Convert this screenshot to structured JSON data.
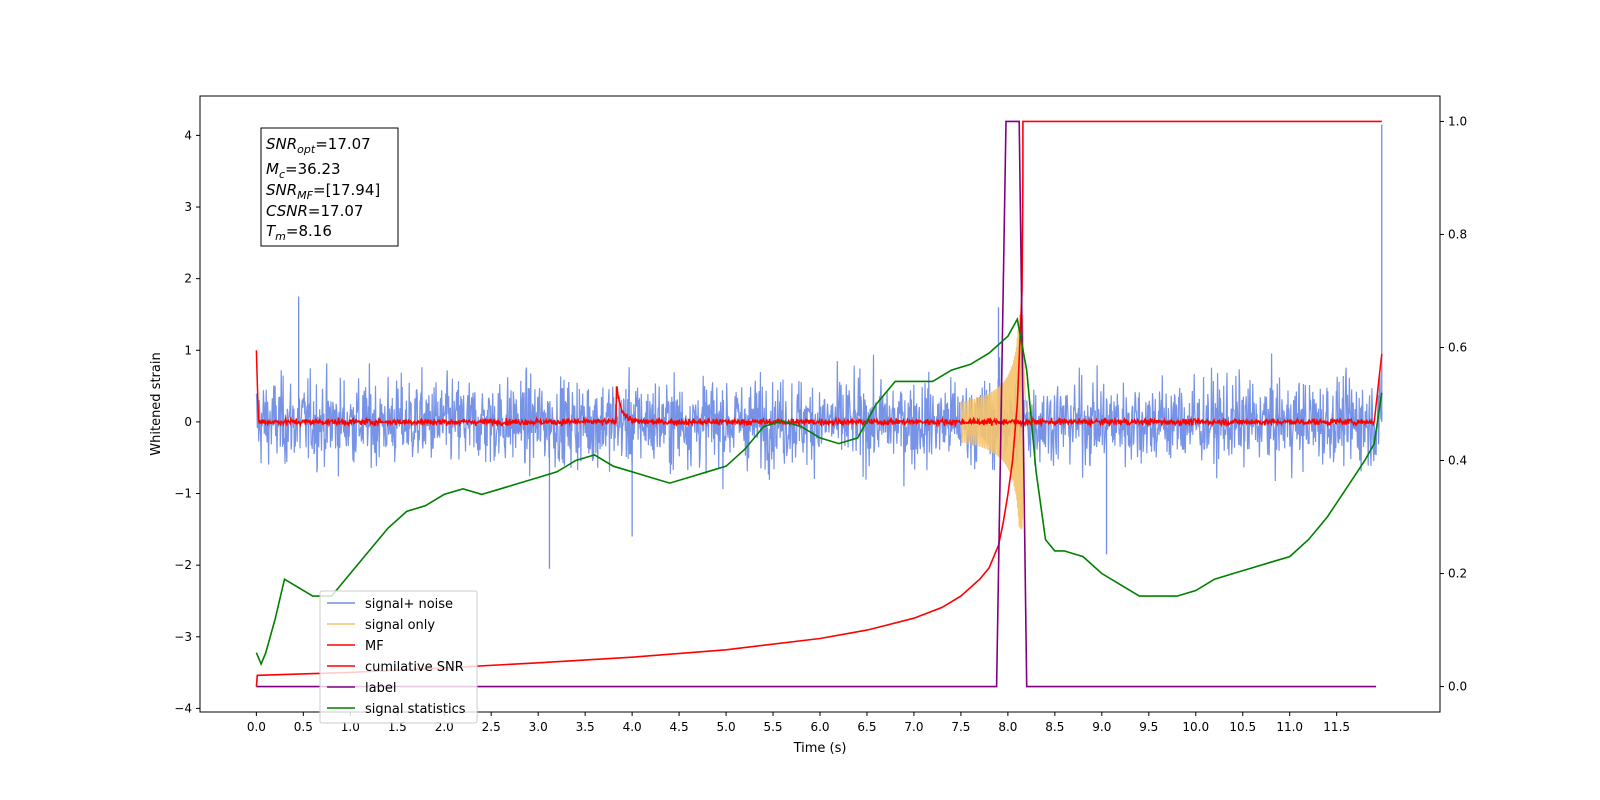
{
  "chart_data": {
    "type": "line",
    "title": "",
    "xlabel": "Time (s)",
    "ylabel": "Whitened strain",
    "xlim": [
      -0.6,
      12.6
    ],
    "ylim": [
      -4.05,
      4.55
    ],
    "y2lim": [
      -0.045,
      1.045
    ],
    "x_ticks": [
      0.0,
      0.5,
      1.0,
      1.5,
      2.0,
      2.5,
      3.0,
      3.5,
      4.0,
      4.5,
      5.0,
      5.5,
      6.0,
      6.5,
      7.0,
      7.5,
      8.0,
      8.5,
      9.0,
      9.5,
      10.0,
      10.5,
      11.0,
      11.5
    ],
    "x_tick_labels": [
      "0.0",
      "0.5",
      "1.0",
      "1.5",
      "2.0",
      "2.5",
      "3.0",
      "3.5",
      "4.0",
      "4.5",
      "5.0",
      "5.5",
      "6.0",
      "6.5",
      "7.0",
      "7.5",
      "8.0",
      "8.5",
      "9.0",
      "9.5",
      "10.0",
      "10.5",
      "11.0",
      "11.5"
    ],
    "y_ticks": [
      -4,
      -3,
      -2,
      -1,
      0,
      1,
      2,
      3,
      4
    ],
    "y_tick_labels": [
      "−4",
      "−3",
      "−2",
      "−1",
      "0",
      "1",
      "2",
      "3",
      "4"
    ],
    "y2_ticks": [
      0.0,
      0.2,
      0.4,
      0.6,
      0.8,
      1.0
    ],
    "y2_tick_labels": [
      "0.0",
      "0.2",
      "0.4",
      "0.6",
      "0.8",
      "1.0"
    ],
    "grid": false,
    "legend_position": "lower-left",
    "annotation": {
      "lines": [
        {
          "main": "SNR",
          "sub": "opt",
          "rest": "=17.07"
        },
        {
          "main": "M",
          "sub": "c",
          "rest": "=36.23"
        },
        {
          "main": "SNR",
          "sub": "MF",
          "rest": "=[17.94]"
        },
        {
          "main": "CSNR",
          "sub": "",
          "rest": "=17.07"
        },
        {
          "main": "T",
          "sub": "m",
          "rest": "=8.16"
        }
      ]
    },
    "series": [
      {
        "name": "signal+ noise",
        "axis": "left",
        "color": "#6f8de6",
        "kind": "noise",
        "amplitude": 1.0,
        "x_range": [
          0.0,
          11.98
        ],
        "peaks": [
          [
            0.45,
            1.75
          ],
          [
            3.12,
            -2.05
          ],
          [
            4.0,
            -1.6
          ],
          [
            7.9,
            1.6
          ],
          [
            8.15,
            1.95
          ],
          [
            9.05,
            -1.85
          ],
          [
            11.98,
            4.15
          ]
        ]
      },
      {
        "name": "signal only",
        "axis": "left",
        "color": "#f5c36b",
        "kind": "chirp",
        "x_range": [
          7.5,
          8.2
        ],
        "peak_time": 8.16,
        "peak_amplitude": 1.5
      },
      {
        "name": "MF",
        "axis": "left",
        "color": "#ff0000",
        "kind": "mf",
        "x_range": [
          0.0,
          11.98
        ],
        "values_hint": [
          [
            0.0,
            1.0
          ],
          [
            0.02,
            0.05
          ],
          [
            3.85,
            0.45
          ],
          [
            3.95,
            0.08
          ],
          [
            11.98,
            0.95
          ]
        ]
      },
      {
        "name": "cumilative SNR",
        "axis": "right",
        "color": "#ff0000",
        "x": [
          0.0,
          0.01,
          0.02,
          1.0,
          2.0,
          3.0,
          4.0,
          5.0,
          6.0,
          6.5,
          7.0,
          7.3,
          7.5,
          7.7,
          7.8,
          7.9,
          7.95,
          8.0,
          8.05,
          8.1,
          8.15,
          8.16,
          8.16,
          11.98
        ],
        "y": [
          0.0,
          0.02,
          0.02,
          0.025,
          0.033,
          0.042,
          0.052,
          0.065,
          0.085,
          0.1,
          0.121,
          0.14,
          0.16,
          0.19,
          0.21,
          0.25,
          0.29,
          0.34,
          0.4,
          0.5,
          0.7,
          0.9,
          1.0,
          1.0
        ]
      },
      {
        "name": "label",
        "axis": "right",
        "color": "#800080",
        "x": [
          0.0,
          7.88,
          7.98,
          8.12,
          8.2,
          11.92
        ],
        "y": [
          0.0,
          0.0,
          1.0,
          1.0,
          0.0,
          0.0
        ]
      },
      {
        "name": "signal statistics",
        "axis": "right",
        "color": "#008000",
        "x": [
          0.0,
          0.05,
          0.1,
          0.2,
          0.3,
          0.4,
          0.6,
          0.8,
          1.0,
          1.2,
          1.4,
          1.6,
          1.8,
          2.0,
          2.2,
          2.4,
          2.6,
          2.8,
          3.0,
          3.2,
          3.4,
          3.6,
          3.8,
          4.0,
          4.2,
          4.4,
          4.6,
          4.8,
          5.0,
          5.2,
          5.4,
          5.6,
          5.8,
          6.0,
          6.2,
          6.4,
          6.6,
          6.8,
          7.0,
          7.2,
          7.4,
          7.6,
          7.8,
          8.0,
          8.1,
          8.2,
          8.3,
          8.4,
          8.5,
          8.6,
          8.8,
          9.0,
          9.2,
          9.4,
          9.6,
          9.8,
          10.0,
          10.2,
          10.4,
          10.6,
          10.8,
          11.0,
          11.2,
          11.4,
          11.6,
          11.8,
          11.9,
          11.98
        ],
        "y": [
          0.06,
          0.04,
          0.06,
          0.12,
          0.19,
          0.18,
          0.16,
          0.16,
          0.2,
          0.24,
          0.28,
          0.31,
          0.32,
          0.34,
          0.35,
          0.34,
          0.35,
          0.36,
          0.37,
          0.38,
          0.4,
          0.41,
          0.39,
          0.38,
          0.37,
          0.36,
          0.37,
          0.38,
          0.39,
          0.42,
          0.46,
          0.47,
          0.46,
          0.44,
          0.43,
          0.44,
          0.5,
          0.54,
          0.54,
          0.54,
          0.56,
          0.57,
          0.59,
          0.62,
          0.65,
          0.56,
          0.38,
          0.26,
          0.24,
          0.24,
          0.23,
          0.2,
          0.18,
          0.16,
          0.16,
          0.16,
          0.17,
          0.19,
          0.2,
          0.21,
          0.22,
          0.23,
          0.26,
          0.3,
          0.35,
          0.4,
          0.43,
          0.52
        ]
      }
    ]
  }
}
